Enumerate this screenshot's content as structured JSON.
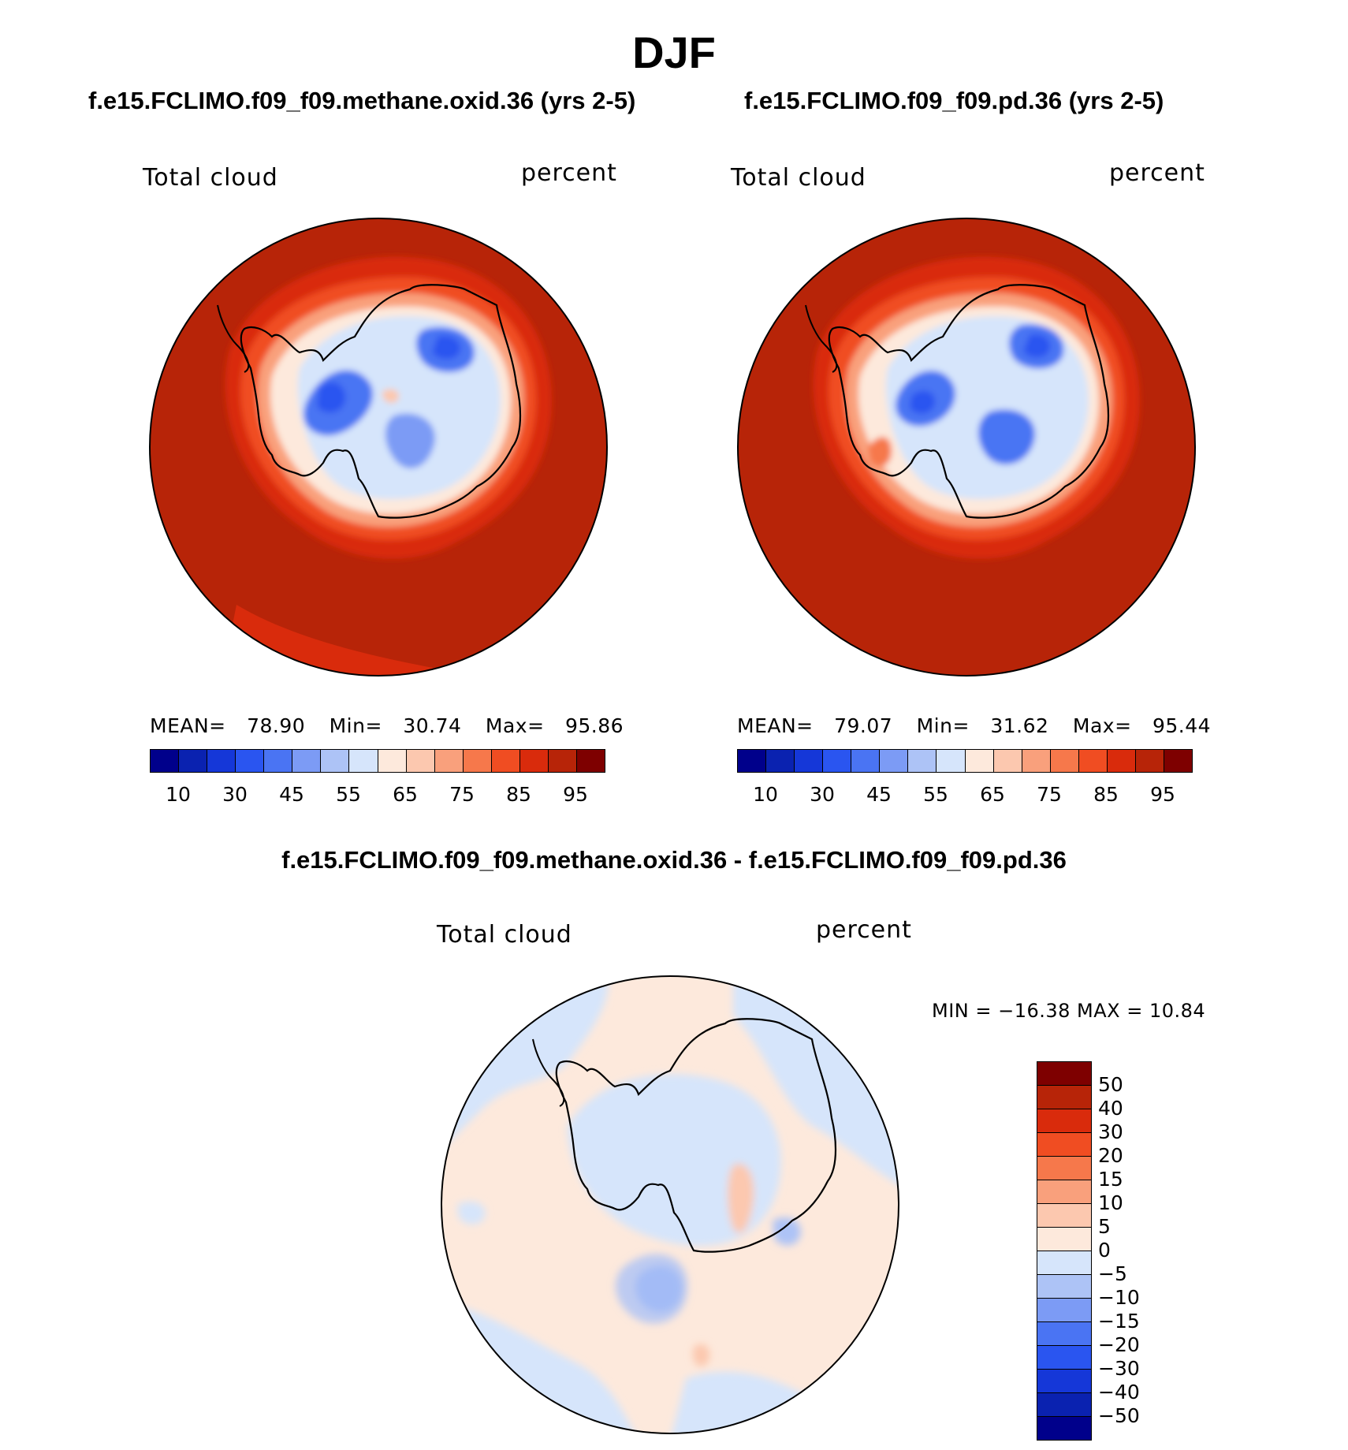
{
  "title": "DJF",
  "panel1": {
    "case": "f.e15.FCLIMO.f09_f09.methane.oxid.36 (yrs 2-5)",
    "variable": "Total cloud",
    "units": "percent",
    "stats": {
      "mean_label": "MEAN=",
      "mean": "78.90",
      "min_label": "Min=",
      "min": "30.74",
      "max_label": "Max=",
      "max": "95.86"
    }
  },
  "panel2": {
    "case": "f.e15.FCLIMO.f09_f09.pd.36 (yrs 2-5)",
    "variable": "Total cloud",
    "units": "percent",
    "stats": {
      "mean_label": "MEAN=",
      "mean": "79.07",
      "min_label": "Min=",
      "min": "31.62",
      "max_label": "Max=",
      "max": "95.44"
    }
  },
  "colorbar_top": {
    "colors": [
      "#00008b",
      "#0a22b0",
      "#1537d8",
      "#2a55f0",
      "#4a74f3",
      "#7c9bf5",
      "#adc3f6",
      "#d6e5fb",
      "#fde9dc",
      "#fcc8af",
      "#f9a07c",
      "#f6784b",
      "#f04d22",
      "#d92b0c",
      "#b72408",
      "#7e0000"
    ],
    "ticks": [
      "10",
      "30",
      "45",
      "55",
      "65",
      "75",
      "85",
      "95"
    ]
  },
  "panel3": {
    "case": "f.e15.FCLIMO.f09_f09.methane.oxid.36 - f.e15.FCLIMO.f09_f09.pd.36",
    "variable": "Total cloud",
    "units": "percent",
    "minmax": "MIN = −16.38 MAX =   10.84"
  },
  "colorbar_diff": {
    "colors": [
      "#7e0000",
      "#b72408",
      "#d92b0c",
      "#f04d22",
      "#f6784b",
      "#f9a07c",
      "#fcc8af",
      "#fde9dc",
      "#d6e5fb",
      "#adc3f6",
      "#7c9bf5",
      "#4a74f3",
      "#2a55f0",
      "#1537d8",
      "#0a22b0",
      "#00008b"
    ],
    "ticks": [
      "50",
      "40",
      "30",
      "20",
      "15",
      "10",
      "5",
      "0",
      "−5",
      "−10",
      "−15",
      "−20",
      "−30",
      "−40",
      "−50"
    ]
  }
}
